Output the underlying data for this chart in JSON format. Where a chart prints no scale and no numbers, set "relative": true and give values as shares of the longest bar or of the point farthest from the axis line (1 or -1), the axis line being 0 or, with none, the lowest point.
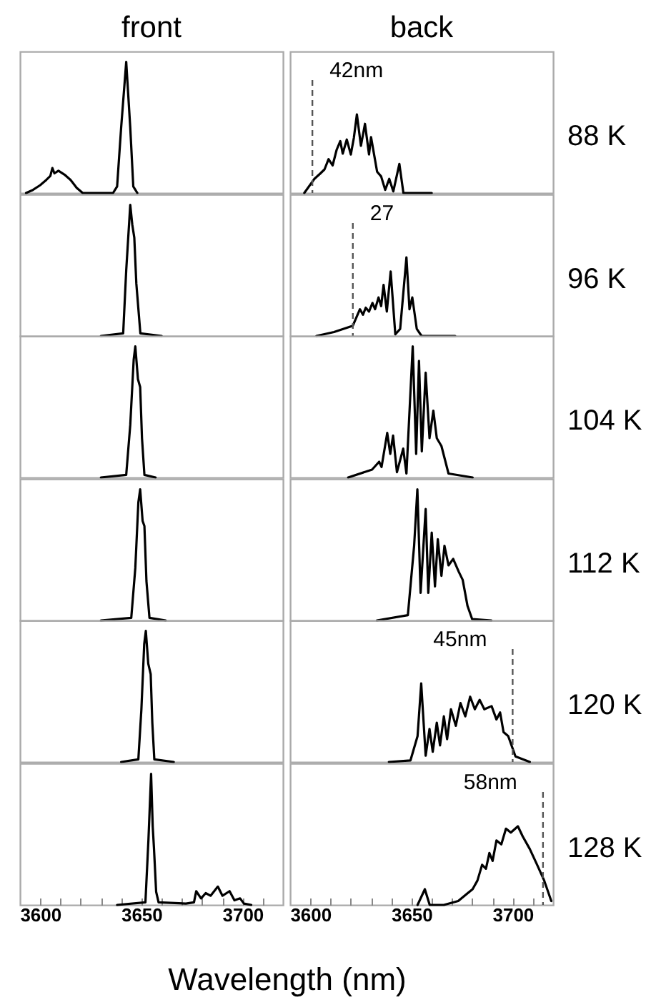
{
  "chart_data": [
    {
      "type": "line",
      "relative": true,
      "title": "front",
      "color": "#000000",
      "xlim": [
        3590,
        3720
      ],
      "tick_labels": false,
      "x": [
        3593,
        3596,
        3600,
        3603,
        3605,
        3606,
        3607,
        3609,
        3612,
        3615,
        3618,
        3621,
        3636,
        3638,
        3640,
        3642.5,
        3644.5,
        3646,
        3648
      ],
      "values": [
        0,
        0.02,
        0.06,
        0.1,
        0.13,
        0.19,
        0.15,
        0.17,
        0.14,
        0.1,
        0.04,
        0,
        0,
        0.05,
        0.5,
        1,
        0.5,
        0.05,
        0
      ]
    },
    {
      "type": "line",
      "relative": true,
      "title": "back",
      "color": "#000000",
      "xlim": [
        3590,
        3720
      ],
      "tick_labels": false,
      "x": [
        3597,
        3602,
        3605,
        3607,
        3609,
        3611,
        3613,
        3614.8,
        3616,
        3618,
        3620,
        3621.5,
        3623,
        3625,
        3627,
        3629,
        3630,
        3633,
        3635,
        3637,
        3639,
        3641,
        3644,
        3646,
        3660
      ],
      "values": [
        0,
        0.18,
        0.25,
        0.3,
        0.43,
        0.35,
        0.55,
        0.66,
        0.5,
        0.68,
        0.49,
        0.7,
        1,
        0.6,
        0.88,
        0.49,
        0.71,
        0.27,
        0.21,
        0.04,
        0.18,
        0.02,
        0.37,
        0,
        0
      ],
      "annotations": [
        "42nm",
        "88 K"
      ],
      "ref_lines": [
        {
          "axis": "x",
          "value": 3601,
          "line_style": "dashed",
          "color": "#555555"
        }
      ]
    },
    {
      "type": "line",
      "relative": true,
      "color": "#000000",
      "xlim": [
        3590,
        3720
      ],
      "tick_labels": false,
      "x": [
        3630,
        3641,
        3642.5,
        3644.5,
        3645.5,
        3646.5,
        3647.5,
        3649.5,
        3660
      ],
      "values": [
        0,
        0.02,
        0.5,
        1,
        0.85,
        0.75,
        0.4,
        0.02,
        0
      ]
    },
    {
      "type": "line",
      "relative": true,
      "color": "#000000",
      "xlim": [
        3590,
        3720
      ],
      "tick_labels": false,
      "x": [
        3603,
        3611.7,
        3621,
        3624.5,
        3626,
        3627.4,
        3629,
        3630.7,
        3632,
        3633.7,
        3635,
        3636.2,
        3637.8,
        3639.7,
        3642,
        3644.4,
        3647.5,
        3649,
        3650.4,
        3652.6,
        3655,
        3671.6
      ],
      "values": [
        0,
        0.05,
        0.13,
        0.34,
        0.27,
        0.36,
        0.31,
        0.42,
        0.34,
        0.49,
        0.38,
        0.65,
        0.31,
        0.82,
        0.02,
        0.09,
        1,
        0.34,
        0.49,
        0.09,
        0,
        0
      ],
      "annotations": [
        "27",
        "96 K"
      ],
      "ref_lines": [
        {
          "axis": "x",
          "value": 3621,
          "line_style": "dashed",
          "color": "#555555"
        }
      ]
    },
    {
      "type": "line",
      "relative": true,
      "color": "#000000",
      "xlim": [
        3590,
        3720
      ],
      "tick_labels": false,
      "x": [
        3630,
        3642.5,
        3644.5,
        3646.2,
        3647,
        3648.3,
        3649.4,
        3650.3,
        3651.5,
        3657
      ],
      "values": [
        0,
        0.02,
        0.4,
        0.9,
        1,
        0.75,
        0.69,
        0.3,
        0.02,
        0
      ]
    },
    {
      "type": "line",
      "relative": true,
      "color": "#000000",
      "xlim": [
        3590,
        3720
      ],
      "tick_labels": false,
      "x": [
        3618.7,
        3630.5,
        3634,
        3635.2,
        3638,
        3639.5,
        3640.9,
        3642.8,
        3645.9,
        3647.5,
        3650.6,
        3652.3,
        3653.7,
        3655.1,
        3657,
        3658.9,
        3660.8,
        3662.5,
        3664.8,
        3668.3,
        3680.2
      ],
      "values": [
        0,
        0.06,
        0.12,
        0.08,
        0.34,
        0.18,
        0.32,
        0.04,
        0.22,
        0.03,
        1,
        0.18,
        0.89,
        0.2,
        0.8,
        0.3,
        0.51,
        0.3,
        0.24,
        0.03,
        0
      ],
      "annotations": [
        "104 K"
      ]
    },
    {
      "type": "line",
      "relative": true,
      "color": "#000000",
      "xlim": [
        3590,
        3720
      ],
      "tick_labels": false,
      "x": [
        3630,
        3645,
        3647,
        3648.5,
        3649.4,
        3650.6,
        3651.5,
        3652.5,
        3654,
        3662
      ],
      "values": [
        0,
        0.02,
        0.4,
        0.9,
        1,
        0.76,
        0.72,
        0.3,
        0.02,
        0
      ]
    },
    {
      "type": "line",
      "relative": true,
      "color": "#000000",
      "xlim": [
        3590,
        3720
      ],
      "tick_labels": false,
      "x": [
        3632.9,
        3648.2,
        3651.3,
        3652.9,
        3654.5,
        3657,
        3658.3,
        3660,
        3661.6,
        3663,
        3664.8,
        3666.3,
        3668.3,
        3670.6,
        3673.4,
        3675.3,
        3677.7,
        3680,
        3689.5
      ],
      "values": [
        0,
        0.04,
        0.57,
        1,
        0.21,
        0.85,
        0.21,
        0.67,
        0.26,
        0.62,
        0.34,
        0.57,
        0.42,
        0.47,
        0.37,
        0.31,
        0.11,
        0.01,
        0
      ],
      "annotations": [
        "112 K"
      ]
    },
    {
      "type": "line",
      "relative": true,
      "color": "#000000",
      "xlim": [
        3590,
        3720
      ],
      "tick_labels": false,
      "x": [
        3640,
        3648.5,
        3650,
        3651.4,
        3652.2,
        3653.4,
        3654.6,
        3655.4,
        3656.4,
        3666
      ],
      "values": [
        0,
        0.02,
        0.4,
        0.9,
        1,
        0.75,
        0.67,
        0.3,
        0.02,
        0
      ]
    },
    {
      "type": "line",
      "relative": true,
      "color": "#000000",
      "xlim": [
        3590,
        3720
      ],
      "tick_labels": false,
      "x": [
        3638.8,
        3649.5,
        3653,
        3654.8,
        3657,
        3658.9,
        3660.5,
        3662.5,
        3664.1,
        3666,
        3667.6,
        3669.5,
        3671.9,
        3674.2,
        3676.6,
        3679,
        3681.3,
        3683.7,
        3686,
        3689.6,
        3692,
        3693.8,
        3695.5,
        3697.8,
        3701.4,
        3708.5
      ],
      "values": [
        0,
        0.02,
        0.33,
        1,
        0.08,
        0.42,
        0.13,
        0.5,
        0.21,
        0.58,
        0.29,
        0.67,
        0.46,
        0.75,
        0.58,
        0.83,
        0.67,
        0.79,
        0.67,
        0.71,
        0.54,
        0.63,
        0.38,
        0.33,
        0.07,
        0
      ],
      "annotations": [
        "45nm",
        "120 K"
      ],
      "ref_lines": [
        {
          "axis": "x",
          "value": 3700,
          "line_style": "dashed",
          "color": "#555555"
        }
      ]
    },
    {
      "type": "line",
      "relative": true,
      "color": "#000000",
      "xlim": [
        3590,
        3720
      ],
      "tick_labels": "x",
      "xlabel": "Wavelength (nm)",
      "xticks": [
        3600,
        {
          "value": 3610,
          "label": null
        },
        {
          "value": 3620,
          "label": null
        },
        {
          "value": 3630,
          "label": null
        },
        {
          "value": 3640,
          "label": null
        },
        3650,
        {
          "value": 3660,
          "label": null
        },
        {
          "value": 3670,
          "label": null
        },
        {
          "value": 3680,
          "label": null
        },
        {
          "value": 3690,
          "label": null
        },
        3700,
        {
          "value": 3710,
          "label": null
        }
      ],
      "x": [
        3638,
        3652,
        3653.5,
        3654.8,
        3655.6,
        3656.2,
        3657.3,
        3658.5,
        3672,
        3676,
        3677.1,
        3679.5,
        3681.8,
        3684.2,
        3687.8,
        3690.1,
        3693.6,
        3696,
        3698.8,
        3700.7,
        3704.3
      ],
      "values": [
        0,
        0.02,
        0.5,
        1,
        0.6,
        0.44,
        0.1,
        0.02,
        0.01,
        0.02,
        0.105,
        0.05,
        0.09,
        0.07,
        0.14,
        0.07,
        0.105,
        0.035,
        0.05,
        0.01,
        0
      ]
    },
    {
      "type": "line",
      "relative": true,
      "color": "#000000",
      "xlim": [
        3590,
        3720
      ],
      "tick_labels": "x",
      "xticks": [
        3600,
        {
          "value": 3610,
          "label": null
        },
        {
          "value": 3620,
          "label": null
        },
        {
          "value": 3630,
          "label": null
        },
        {
          "value": 3640,
          "label": null
        },
        3650,
        {
          "value": 3660,
          "label": null
        },
        {
          "value": 3670,
          "label": null
        },
        {
          "value": 3680,
          "label": null
        },
        {
          "value": 3690,
          "label": null
        },
        3700,
        {
          "value": 3710,
          "label": null
        }
      ],
      "x": [
        3653,
        3656.6,
        3659,
        3666,
        3673.1,
        3677.8,
        3680.2,
        3682.6,
        3684.9,
        3686.8,
        3688.5,
        3690.1,
        3692,
        3694.4,
        3696.7,
        3699.1,
        3702.6,
        3705,
        3708.5,
        3712.1,
        3715.6,
        3719.1
      ],
      "values": [
        0,
        0.2,
        0,
        0,
        0.05,
        0.15,
        0.2,
        0.31,
        0.51,
        0.46,
        0.66,
        0.56,
        0.82,
        0.77,
        0.97,
        0.92,
        1,
        0.87,
        0.71,
        0.51,
        0.31,
        0.05
      ],
      "annotations": [
        "58nm",
        "128 K"
      ],
      "ref_lines": [
        {
          "axis": "x",
          "value": 3715,
          "line_style": "dashed",
          "color": "#555555"
        }
      ]
    }
  ]
}
